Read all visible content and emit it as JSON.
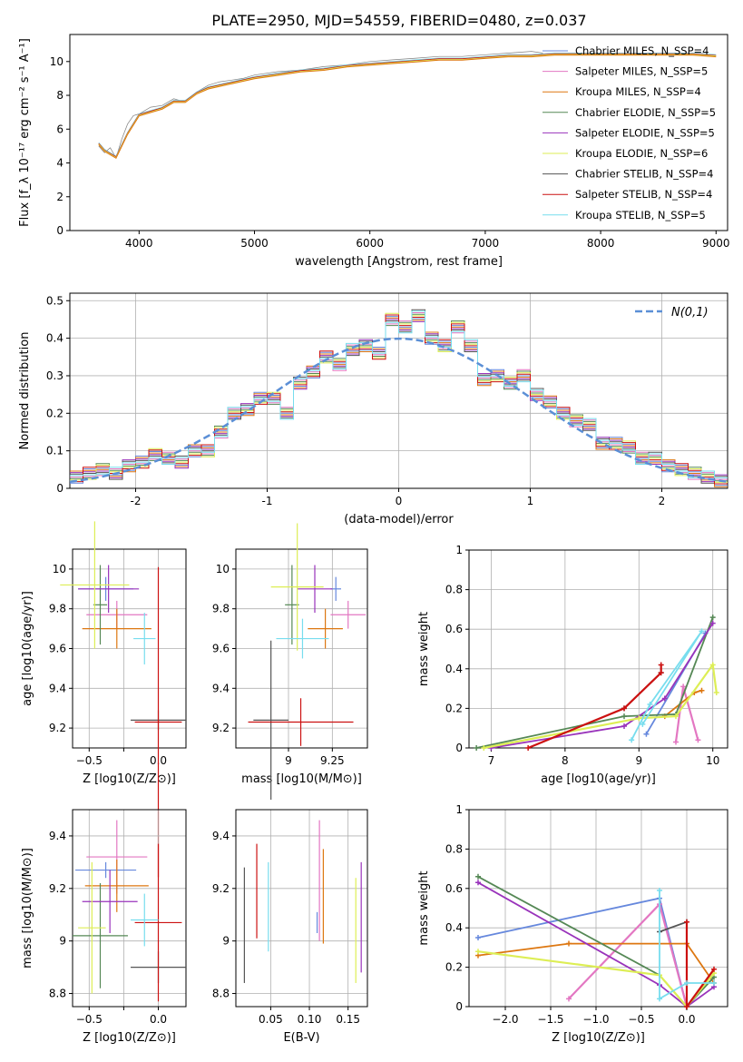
{
  "figure_title": "PLATE=2950, MJD=54559, FIBERID=0480, z=0.037",
  "colors": {
    "chabrier_miles": "#6688dd",
    "salpeter_miles": "#e377c2",
    "kroupa_miles": "#dd7711",
    "chabrier_elodie": "#558855",
    "salpeter_elodie": "#9933bb",
    "kroupa_elodie": "#ddee55",
    "chabrier_stelib": "#555555",
    "salpeter_stelib": "#cc1111",
    "kroupa_stelib": "#77ddee",
    "normal_curve": "#5b8fd6",
    "grid": "#b0b0b0",
    "data_spectrum": "#808080"
  },
  "chart_data": [
    {
      "id": "spectrum",
      "type": "line",
      "xlabel": "wavelength [Angstrom, rest frame]",
      "ylabel": "Flux [f_λ 10⁻¹⁷ erg cm⁻² s⁻¹ A⁻¹]",
      "xlim": [
        3400,
        9100
      ],
      "ylim": [
        0,
        11.6
      ],
      "xticks": [
        4000,
        5000,
        6000,
        7000,
        8000,
        9000
      ],
      "yticks": [
        0,
        2,
        4,
        6,
        8,
        10
      ],
      "grid": false,
      "legend_position": "top-right",
      "data": {
        "name": "",
        "x": [
          3650,
          3700,
          3750,
          3800,
          3850,
          3900,
          3950,
          4000,
          4100,
          4200,
          4300,
          4400,
          4500,
          4600,
          4700,
          4800,
          4900,
          5000,
          5200,
          5400,
          5600,
          5800,
          6000,
          6200,
          6400,
          6600,
          6800,
          7000,
          7200,
          7400,
          7500
        ],
        "y": [
          5.0,
          4.6,
          4.9,
          4.3,
          5.4,
          6.3,
          6.8,
          6.9,
          7.3,
          7.4,
          7.8,
          7.6,
          8.2,
          8.6,
          8.8,
          8.9,
          9.0,
          9.2,
          9.4,
          9.5,
          9.7,
          9.8,
          10.0,
          10.1,
          10.2,
          10.3,
          10.3,
          10.4,
          10.5,
          10.6,
          10.5
        ]
      },
      "model_trends": {
        "x": [
          3650,
          3700,
          3800,
          3900,
          4000,
          4100,
          4200,
          4300,
          4400,
          4500,
          4600,
          4800,
          5000,
          5200,
          5400,
          5600,
          5800,
          6000,
          6200,
          6400,
          6600,
          6800,
          7000,
          7200,
          7400,
          7600,
          7800,
          8000,
          8200,
          8400,
          8600,
          8800,
          9000
        ],
        "y": [
          5.2,
          4.8,
          4.4,
          5.8,
          6.9,
          7.1,
          7.3,
          7.7,
          7.7,
          8.2,
          8.5,
          8.8,
          9.1,
          9.3,
          9.5,
          9.6,
          9.8,
          9.9,
          10.0,
          10.1,
          10.2,
          10.2,
          10.3,
          10.4,
          10.4,
          10.5,
          10.5,
          10.5,
          10.5,
          10.5,
          10.5,
          10.5,
          10.4
        ]
      },
      "legend": [
        "Chabrier MILES, N_SSP=4",
        "Salpeter MILES, N_SSP=5",
        "Kroupa MILES, N_SSP=4",
        "Chabrier ELODIE, N_SSP=5",
        "Salpeter ELODIE, N_SSP=5",
        "Kroupa ELODIE, N_SSP=6",
        "Chabrier STELIB, N_SSP=4",
        "Salpeter STELIB, N_SSP=4",
        "Kroupa STELIB, N_SSP=5"
      ]
    },
    {
      "id": "residuals",
      "type": "line",
      "xlabel": "(data-model)/error",
      "ylabel": "Normed distribution",
      "xlim": [
        -2.5,
        2.5
      ],
      "ylim": [
        0,
        0.52
      ],
      "xticks": [
        -2,
        -1,
        0,
        1,
        2
      ],
      "yticks": [
        0.0,
        0.1,
        0.2,
        0.3,
        0.4,
        0.5
      ],
      "grid": true,
      "legend_position": "top-right",
      "legend": [
        "N(0,1)"
      ],
      "bins": [
        -2.5,
        -2.4,
        -2.3,
        -2.2,
        -2.1,
        -2.0,
        -1.9,
        -1.8,
        -1.7,
        -1.6,
        -1.5,
        -1.4,
        -1.3,
        -1.2,
        -1.1,
        -1.0,
        -0.9,
        -0.8,
        -0.7,
        -0.6,
        -0.5,
        -0.4,
        -0.3,
        -0.2,
        -0.1,
        0.0,
        0.1,
        0.2,
        0.3,
        0.4,
        0.5,
        0.6,
        0.7,
        0.8,
        0.9,
        1.0,
        1.1,
        1.2,
        1.3,
        1.4,
        1.5,
        1.6,
        1.7,
        1.8,
        1.9,
        2.0,
        2.1,
        2.2,
        2.3,
        2.4,
        2.5
      ],
      "histogram_counts": [
        0.03,
        0.04,
        0.05,
        0.04,
        0.06,
        0.07,
        0.09,
        0.08,
        0.07,
        0.1,
        0.1,
        0.15,
        0.2,
        0.21,
        0.24,
        0.24,
        0.2,
        0.28,
        0.31,
        0.35,
        0.33,
        0.37,
        0.38,
        0.36,
        0.45,
        0.43,
        0.46,
        0.4,
        0.38,
        0.43,
        0.38,
        0.29,
        0.3,
        0.28,
        0.3,
        0.25,
        0.23,
        0.2,
        0.18,
        0.17,
        0.12,
        0.12,
        0.11,
        0.08,
        0.08,
        0.06,
        0.05,
        0.04,
        0.03,
        0.02
      ]
    },
    {
      "id": "age_vs_Z",
      "type": "scatter",
      "xlabel": "Z [log10(Z/Z⊙)]",
      "ylabel": "age  [log10(age/yr)]",
      "xlim": [
        -0.62,
        0.2
      ],
      "ylim": [
        9.1,
        10.1
      ],
      "xticks": [
        -0.5,
        -0.25,
        0.0
      ],
      "xticklabels": [
        "−0.5",
        "",
        "0.0"
      ],
      "yticks": [
        9.2,
        9.4,
        9.6,
        9.8,
        10.0
      ],
      "grid": true,
      "errorbars": [
        {
          "series": "chabrier_miles",
          "x": -0.38,
          "y": 9.9,
          "xerr": 0.2,
          "yerr": 0.06
        },
        {
          "series": "salpeter_miles",
          "x": -0.3,
          "y": 9.77,
          "xerr": 0.22,
          "yerr": 0.07
        },
        {
          "series": "kroupa_miles",
          "x": -0.3,
          "y": 9.7,
          "xerr": 0.25,
          "yerr": 0.1
        },
        {
          "series": "chabrier_elodie",
          "x": -0.42,
          "y": 9.82,
          "xerr": 0.05,
          "yerr": 0.2
        },
        {
          "series": "salpeter_elodie",
          "x": -0.36,
          "y": 9.9,
          "xerr": 0.22,
          "yerr": 0.12
        },
        {
          "series": "kroupa_elodie",
          "x": -0.46,
          "y": 9.92,
          "xerr": 0.25,
          "yerr": 0.32
        },
        {
          "series": "chabrier_stelib",
          "x": 0.0,
          "y": 9.24,
          "xerr": 0.2,
          "yerr": 0.05
        },
        {
          "series": "salpeter_stelib",
          "x": 0.0,
          "y": 9.23,
          "xerr": 0.17,
          "yerr": 0.78
        },
        {
          "series": "kroupa_stelib",
          "x": -0.1,
          "y": 9.65,
          "xerr": 0.08,
          "yerr": 0.13
        }
      ]
    },
    {
      "id": "age_vs_mass",
      "type": "scatter",
      "xlabel": "mass [log10(M/M⊙)]",
      "ylabel": "",
      "xlim": [
        8.7,
        9.45
      ],
      "ylim": [
        9.1,
        10.1
      ],
      "xticks": [
        9.0,
        9.25
      ],
      "yticks": [
        9.2,
        9.4,
        9.6,
        9.8,
        10.0
      ],
      "grid": true,
      "errorbars": [
        {
          "series": "chabrier_miles",
          "x": 9.27,
          "y": 9.9,
          "xerr": 0.03,
          "yerr": 0.06
        },
        {
          "series": "salpeter_miles",
          "x": 9.34,
          "y": 9.77,
          "xerr": 0.1,
          "yerr": 0.07
        },
        {
          "series": "kroupa_miles",
          "x": 9.21,
          "y": 9.7,
          "xerr": 0.1,
          "yerr": 0.1
        },
        {
          "series": "chabrier_elodie",
          "x": 9.02,
          "y": 9.82,
          "xerr": 0.04,
          "yerr": 0.2
        },
        {
          "series": "salpeter_elodie",
          "x": 9.15,
          "y": 9.9,
          "xerr": 0.1,
          "yerr": 0.12
        },
        {
          "series": "kroupa_elodie",
          "x": 9.05,
          "y": 9.91,
          "xerr": 0.15,
          "yerr": 0.32
        },
        {
          "series": "chabrier_stelib",
          "x": 8.9,
          "y": 9.24,
          "xerr": 0.1,
          "yerr": 0.4
        },
        {
          "series": "salpeter_stelib",
          "x": 9.07,
          "y": 9.23,
          "xerr": 0.3,
          "yerr": 0.12
        },
        {
          "series": "kroupa_stelib",
          "x": 9.08,
          "y": 9.65,
          "xerr": 0.15,
          "yerr": 0.1
        }
      ]
    },
    {
      "id": "weight_vs_age",
      "type": "line",
      "xlabel": "age  [log10(age/yr)]",
      "ylabel": "mass weight",
      "xlim": [
        6.7,
        10.2
      ],
      "ylim": [
        0,
        1
      ],
      "xticks": [
        7,
        8,
        9,
        10
      ],
      "yticks": [
        0.0,
        0.2,
        0.4,
        0.6,
        0.8,
        1.0
      ],
      "grid": true,
      "series": [
        {
          "id": "chabrier_miles",
          "x": [
            9.1,
            9.9
          ],
          "y": [
            0.07,
            0.58
          ]
        },
        {
          "id": "salpeter_miles",
          "x": [
            9.5,
            9.6,
            9.8
          ],
          "y": [
            0.03,
            0.31,
            0.04
          ]
        },
        {
          "id": "kroupa_miles",
          "x": [
            9.35,
            9.75,
            9.85
          ],
          "y": [
            0.16,
            0.28,
            0.29
          ]
        },
        {
          "id": "chabrier_elodie",
          "x": [
            6.8,
            8.8,
            9.5,
            10.0
          ],
          "y": [
            0.0,
            0.16,
            0.17,
            0.66
          ]
        },
        {
          "id": "salpeter_elodie",
          "x": [
            7.0,
            8.8,
            9.35,
            10.0
          ],
          "y": [
            0.0,
            0.11,
            0.25,
            0.63
          ]
        },
        {
          "id": "kroupa_elodie",
          "x": [
            6.9,
            9.0,
            9.5,
            10.0,
            10.05
          ],
          "y": [
            0.0,
            0.15,
            0.16,
            0.42,
            0.28
          ]
        },
        {
          "id": "chabrier_stelib",
          "x": [
            8.8,
            9.3
          ],
          "y": [
            0.2,
            0.38
          ]
        },
        {
          "id": "salpeter_stelib",
          "x": [
            7.5,
            8.8,
            9.3,
            9.3
          ],
          "y": [
            0.0,
            0.2,
            0.38,
            0.42
          ]
        },
        {
          "id": "kroupa_stelib",
          "x": [
            8.9,
            9.15,
            9.85,
            9.05
          ],
          "y": [
            0.04,
            0.22,
            0.59,
            0.12
          ]
        }
      ]
    },
    {
      "id": "mass_vs_Z",
      "type": "scatter",
      "xlabel": "Z [log10(Z/Z⊙)]",
      "ylabel": "mass [log10(M/M⊙)]",
      "xlim": [
        -0.62,
        0.2
      ],
      "ylim": [
        8.75,
        9.5
      ],
      "xticks": [
        -0.5,
        -0.25,
        0.0
      ],
      "xticklabels": [
        "−0.5",
        "",
        "0.0"
      ],
      "yticks": [
        8.8,
        9.0,
        9.2,
        9.4
      ],
      "grid": true,
      "errorbars": [
        {
          "series": "chabrier_miles",
          "x": -0.38,
          "y": 9.27,
          "xerr": 0.22,
          "yerr": 0.03
        },
        {
          "series": "salpeter_miles",
          "x": -0.3,
          "y": 9.32,
          "xerr": 0.22,
          "yerr": 0.14
        },
        {
          "series": "kroupa_miles",
          "x": -0.3,
          "y": 9.21,
          "xerr": 0.23,
          "yerr": 0.1
        },
        {
          "series": "chabrier_elodie",
          "x": -0.42,
          "y": 9.02,
          "xerr": 0.2,
          "yerr": 0.2
        },
        {
          "series": "salpeter_elodie",
          "x": -0.35,
          "y": 9.15,
          "xerr": 0.2,
          "yerr": 0.12
        },
        {
          "series": "kroupa_elodie",
          "x": -0.48,
          "y": 9.05,
          "xerr": 0.1,
          "yerr": 0.25
        },
        {
          "series": "chabrier_stelib",
          "x": 0.0,
          "y": 8.9,
          "xerr": 0.2,
          "yerr": 0.06
        },
        {
          "series": "salpeter_stelib",
          "x": 0.0,
          "y": 9.07,
          "xerr": 0.17,
          "yerr": 0.3
        },
        {
          "series": "kroupa_stelib",
          "x": -0.1,
          "y": 9.08,
          "xerr": 0.1,
          "yerr": 0.1
        }
      ]
    },
    {
      "id": "mass_vs_ebv",
      "type": "scatter",
      "xlabel": "E(B-V)",
      "ylabel": "",
      "xlim": [
        0.005,
        0.175
      ],
      "ylim": [
        8.75,
        9.5
      ],
      "xticks": [
        0.05,
        0.1,
        0.15
      ],
      "xticklabels": [
        "0.05",
        "0.10",
        "0.15"
      ],
      "yticks": [
        8.8,
        9.0,
        9.2,
        9.4
      ],
      "grid": true,
      "errorbars": [
        {
          "series": "chabrier_stelib",
          "x": 0.016,
          "y": 9.06,
          "xerr": 0.0,
          "yerr": 0.22
        },
        {
          "series": "salpeter_stelib",
          "x": 0.032,
          "y": 9.19,
          "xerr": 0.0,
          "yerr": 0.18
        },
        {
          "series": "kroupa_stelib",
          "x": 0.047,
          "y": 9.13,
          "xerr": 0.0,
          "yerr": 0.17
        },
        {
          "series": "chabrier_miles",
          "x": 0.11,
          "y": 9.07,
          "xerr": 0.0,
          "yerr": 0.04
        },
        {
          "series": "salpeter_miles",
          "x": 0.113,
          "y": 9.23,
          "xerr": 0.0,
          "yerr": 0.23
        },
        {
          "series": "kroupa_miles",
          "x": 0.118,
          "y": 9.17,
          "xerr": 0.0,
          "yerr": 0.18
        },
        {
          "series": "kroupa_elodie",
          "x": 0.16,
          "y": 9.04,
          "xerr": 0.0,
          "yerr": 0.2
        },
        {
          "series": "salpeter_elodie",
          "x": 0.167,
          "y": 9.09,
          "xerr": 0.0,
          "yerr": 0.21
        }
      ]
    },
    {
      "id": "weight_vs_Z",
      "type": "line",
      "xlabel": "Z [log10(Z/Z⊙)]",
      "ylabel": "mass weight",
      "xlim": [
        -2.4,
        0.45
      ],
      "ylim": [
        0,
        1
      ],
      "xticks": [
        -2.0,
        -1.5,
        -1.0,
        -0.5,
        0.0
      ],
      "xticklabels": [
        "−2.0",
        "−1.5",
        "−1.0",
        "−0.5",
        "0.0"
      ],
      "yticks": [
        0.0,
        0.2,
        0.4,
        0.6,
        0.8,
        1.0
      ],
      "grid": true,
      "series": [
        {
          "id": "chabrier_miles",
          "x": [
            -2.3,
            -0.3,
            0.0
          ],
          "y": [
            0.35,
            0.55,
            0.0
          ]
        },
        {
          "id": "salpeter_miles",
          "x": [
            -1.3,
            -0.3,
            0.0
          ],
          "y": [
            0.04,
            0.52,
            0.0
          ]
        },
        {
          "id": "kroupa_miles",
          "x": [
            -2.3,
            -1.3,
            0.0,
            0.3
          ],
          "y": [
            0.26,
            0.32,
            0.32,
            0.12
          ]
        },
        {
          "id": "chabrier_elodie",
          "x": [
            -2.3,
            -0.3,
            0.0,
            0.3
          ],
          "y": [
            0.66,
            0.16,
            0.0,
            0.15
          ]
        },
        {
          "id": "salpeter_elodie",
          "x": [
            -2.3,
            -0.3,
            0.0,
            0.3
          ],
          "y": [
            0.63,
            0.11,
            0.0,
            0.1
          ]
        },
        {
          "id": "kroupa_elodie",
          "x": [
            -2.3,
            -0.3,
            0.0,
            0.3
          ],
          "y": [
            0.28,
            0.16,
            0.0,
            0.17
          ]
        },
        {
          "id": "chabrier_stelib",
          "x": [
            -0.3,
            0.0
          ],
          "y": [
            0.38,
            0.43
          ]
        },
        {
          "id": "salpeter_stelib",
          "x": [
            0.0,
            0.0,
            0.3
          ],
          "y": [
            0.43,
            0.0,
            0.19
          ]
        },
        {
          "id": "kroupa_stelib",
          "x": [
            -0.3,
            -0.3,
            0.0,
            0.3
          ],
          "y": [
            0.59,
            0.04,
            0.12,
            0.12
          ]
        }
      ]
    }
  ]
}
